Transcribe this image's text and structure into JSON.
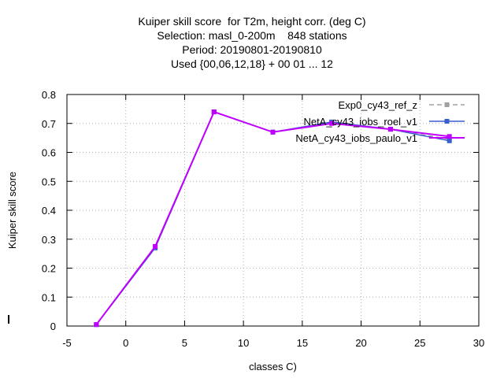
{
  "chart_data": {
    "type": "line",
    "title_lines": [
      "Kuiper skill score  for T2m, height corr. (deg C)",
      "Selection: masl_0-200m    848 stations",
      "Period: 20190801-20190810",
      "Used {00,06,12,18} + 00 01 ... 12"
    ],
    "xlabel": "classes C)",
    "ylabel": "Kuiper skill score",
    "xlim": [
      -5,
      30
    ],
    "ylim": [
      0,
      0.8
    ],
    "xticks": [
      -5,
      0,
      5,
      10,
      15,
      20,
      25,
      30
    ],
    "yticks": [
      0,
      0.1,
      0.2,
      0.3,
      0.4,
      0.5,
      0.6,
      0.7,
      0.8
    ],
    "grid": true,
    "legend_position": "top-right",
    "series": [
      {
        "name": "Exp0_cy43_ref_z",
        "color": "#a0a0a0",
        "dash": "dashed",
        "x": [
          -2.5,
          2.5,
          7.5,
          12.5,
          17.5,
          22.5,
          27.5
        ],
        "y": [
          0.005,
          0.27,
          0.74,
          0.67,
          0.705,
          0.68,
          0.645
        ]
      },
      {
        "name": "NetA_cy43_iobs_roel_v1",
        "color": "#3a5fcd",
        "dash": "solid",
        "x": [
          -2.5,
          2.5,
          7.5,
          12.5,
          17.5,
          22.5,
          27.5
        ],
        "y": [
          0.005,
          0.27,
          0.74,
          0.67,
          0.705,
          0.68,
          0.64
        ]
      },
      {
        "name": "NetA_cy43_iobs_paulo_v1",
        "color": "#c000ff",
        "dash": "solid",
        "x": [
          -2.5,
          2.5,
          7.5,
          12.5,
          17.5,
          22.5,
          27.5
        ],
        "y": [
          0.005,
          0.275,
          0.74,
          0.67,
          0.7,
          0.68,
          0.655
        ]
      }
    ]
  }
}
